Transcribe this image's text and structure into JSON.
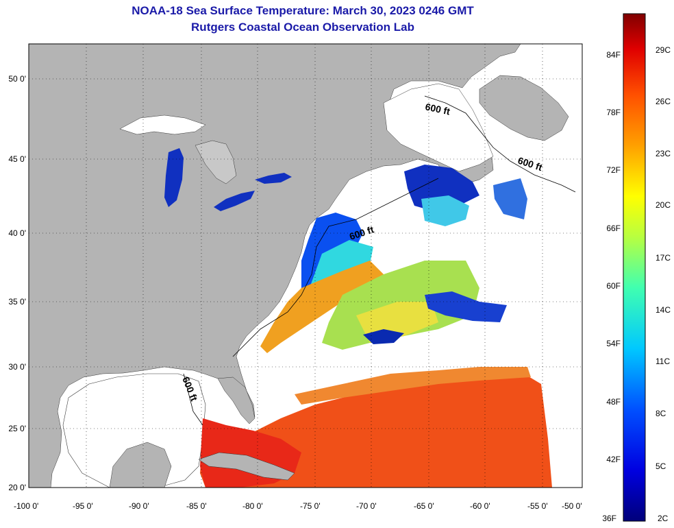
{
  "title": "NOAA-18 Sea Surface Temperature:  March 30, 2023 0246 GMT",
  "subtitle": "Rutgers Coastal Ocean Observation Lab",
  "lon_ticks": [
    "-100 0'",
    "-95 0'",
    "-90 0'",
    "-85 0'",
    "-80 0'",
    "-75 0'",
    "-70 0'",
    "-65 0'",
    "-60 0'",
    "-55 0'",
    "-50 0'"
  ],
  "lat_ticks": [
    "50 0'",
    "45 0'",
    "40 0'",
    "35 0'",
    "30 0'",
    "25 0'",
    "20 0'"
  ],
  "isobath_label": "600 ft",
  "colorbar": {
    "f_labels": [
      "84F",
      "78F",
      "72F",
      "66F",
      "60F",
      "54F",
      "48F",
      "42F",
      "36F"
    ],
    "c_labels": [
      "29C",
      "26C",
      "23C",
      "20C",
      "17C",
      "14C",
      "11C",
      "8C",
      "5C",
      "2C"
    ]
  },
  "colors": {
    "land": "#b4b4b4",
    "no_data": "#ffffff",
    "cold": "#00008c",
    "warm": "#e42a10",
    "title": "#1a1aa8"
  }
}
